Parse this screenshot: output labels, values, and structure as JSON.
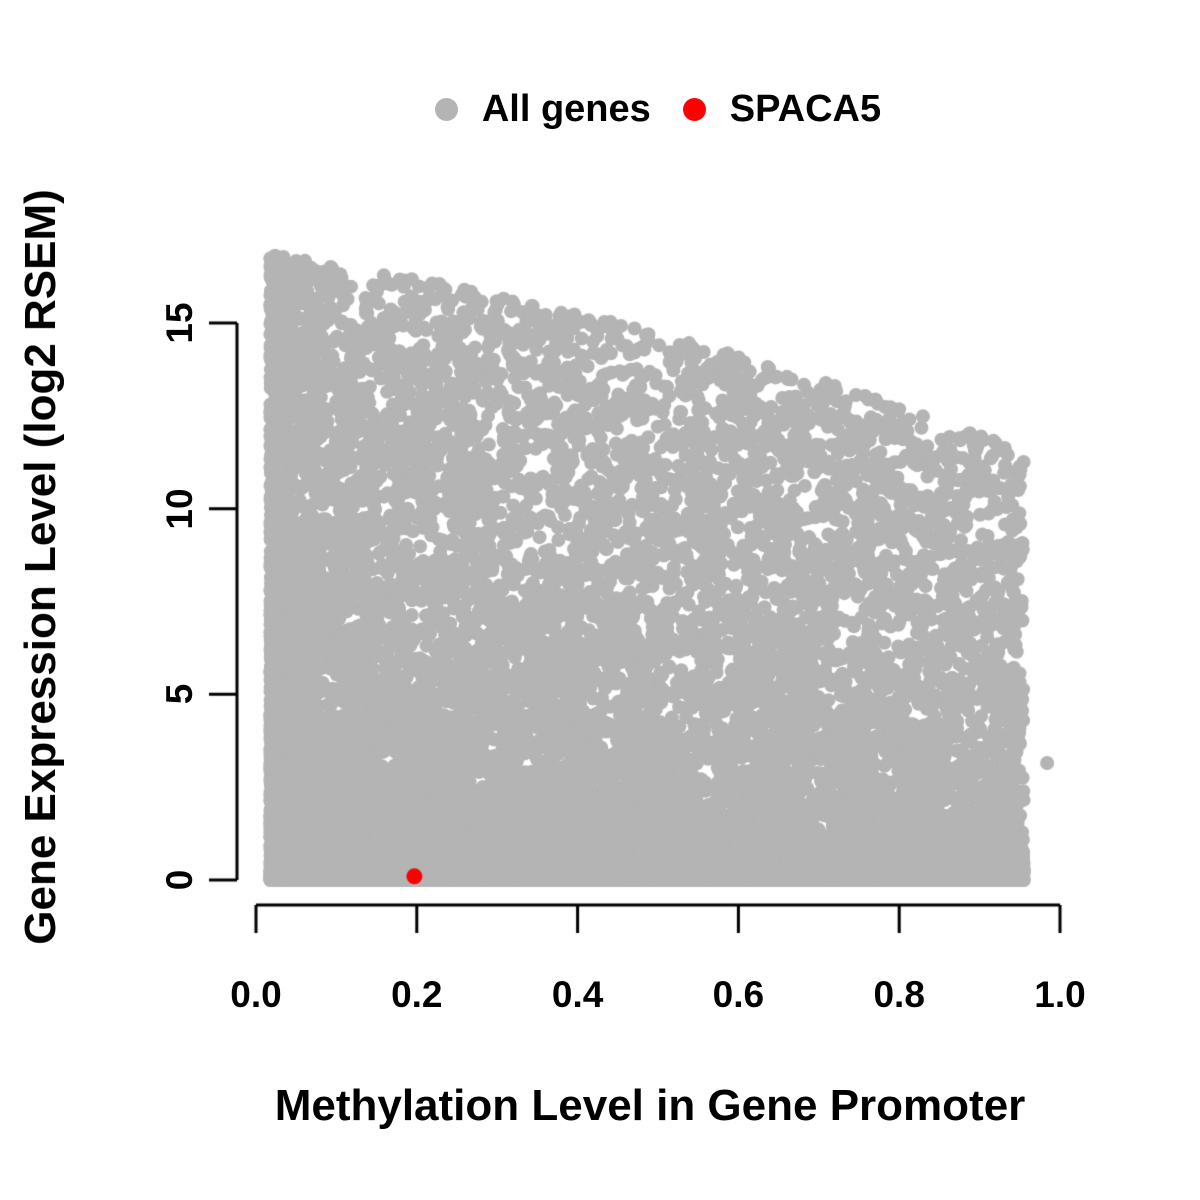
{
  "figure": {
    "background": "#ffffff",
    "text_color": "#000000",
    "axis_color": "#000000"
  },
  "chart_data": {
    "type": "scatter",
    "title": "",
    "xlabel": "Methylation Level in Gene Promoter",
    "ylabel": "Gene Expression Level (log2 RSEM)",
    "grid": false,
    "x_axis": {
      "min": 0.0,
      "max": 1.0,
      "tick_values": [
        0.0,
        0.2,
        0.4,
        0.6,
        0.8,
        1.0
      ],
      "tick_labels": [
        "0.0",
        "0.2",
        "0.4",
        "0.6",
        "0.8",
        "1.0"
      ]
    },
    "y_axis": {
      "min": 0,
      "max": 15,
      "data_max": 16.9,
      "tick_values": [
        0,
        5,
        10,
        15
      ],
      "tick_labels": [
        "0",
        "5",
        "10",
        "15"
      ]
    },
    "legend": {
      "position": "top-center",
      "items": [
        {
          "label": "All genes",
          "color": "#b4b4b4"
        },
        {
          "label": "SPACA5",
          "color": "#ff0000"
        }
      ]
    },
    "series": [
      {
        "name": "All genes",
        "color": "#b4b4b4",
        "marker": "filled-circle",
        "marker_radius_px": 7,
        "n_points_approx": 20500,
        "distribution_note": "very dense cloud; x from ~0.02 to ~0.96; expression 0 to ~16.9 at low methylation; upper envelope of expression decreases as methylation rises (~12 at x=0.9); heavy solid strip of near-zero expression across all methylation levels",
        "explicit_points": [
          [
            0.984,
            3.15
          ]
        ],
        "generation": {
          "seed": 42,
          "n_zero_strip": 6500,
          "n_expressed": 14000,
          "x_min": 0.018,
          "x_max": 0.955,
          "x_skew_weight": 0.62,
          "x_skew_exponent": 1.9,
          "envelope_poly": [
            16.9,
            -3.1,
            -2.6
          ],
          "y_tail_exponent": 2.2,
          "zero_strip_max_y": 1.3,
          "zero_strip_y_exponent": 3.5
        }
      },
      {
        "name": "SPACA5",
        "color": "#ff0000",
        "marker": "filled-circle",
        "marker_radius_px": 8,
        "points": [
          [
            0.197,
            0.1
          ]
        ]
      }
    ]
  }
}
